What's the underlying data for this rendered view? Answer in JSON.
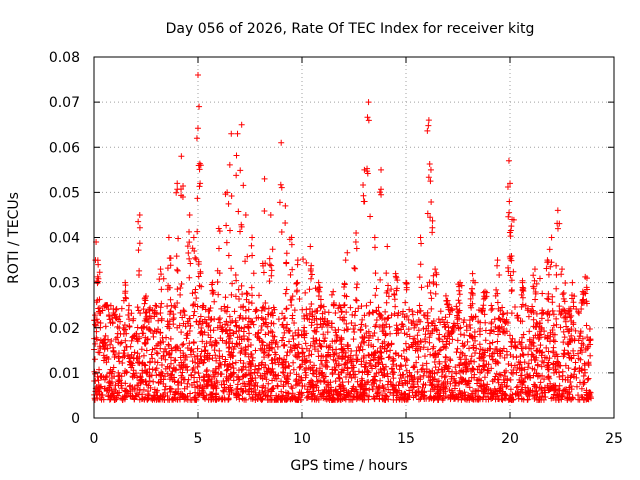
{
  "chart_data": {
    "type": "scatter",
    "title": "Day 056 of 2026, Rate Of TEC Index for receiver kitg",
    "xlabel": "GPS time / hours",
    "ylabel": "ROTI / TECUs",
    "xlim": [
      0,
      25
    ],
    "ylim": [
      0,
      0.08
    ],
    "xticks": [
      0,
      5,
      10,
      15,
      20,
      25
    ],
    "xtick_labels": [
      "0",
      "5",
      "10",
      "15",
      "20",
      "25"
    ],
    "yticks": [
      0,
      0.01,
      0.02,
      0.03,
      0.04,
      0.05,
      0.06,
      0.07,
      0.08
    ],
    "ytick_labels": [
      "0",
      "0.01",
      "0.02",
      "0.03",
      "0.04",
      "0.05",
      "0.06",
      "0.07",
      "0.08"
    ],
    "grid": true,
    "marker": "+",
    "series": [
      {
        "name": "ROTI",
        "color": "#ff0000",
        "x_range_hours": [
          0,
          23.9
        ],
        "typical_band": [
          0.004,
          0.025
        ],
        "peaks": [
          {
            "x": 0.1,
            "y": 0.039
          },
          {
            "x": 0.2,
            "y": 0.034
          },
          {
            "x": 0.6,
            "y": 0.025
          },
          {
            "x": 0.9,
            "y": 0.021
          },
          {
            "x": 1.5,
            "y": 0.03
          },
          {
            "x": 2.2,
            "y": 0.045
          },
          {
            "x": 2.5,
            "y": 0.027
          },
          {
            "x": 3.2,
            "y": 0.033
          },
          {
            "x": 3.6,
            "y": 0.04
          },
          {
            "x": 4.0,
            "y": 0.052
          },
          {
            "x": 4.2,
            "y": 0.058
          },
          {
            "x": 4.6,
            "y": 0.045
          },
          {
            "x": 4.8,
            "y": 0.04
          },
          {
            "x": 4.95,
            "y": 0.062
          },
          {
            "x": 5.0,
            "y": 0.076
          },
          {
            "x": 5.05,
            "y": 0.069
          },
          {
            "x": 5.1,
            "y": 0.052
          },
          {
            "x": 5.7,
            "y": 0.03
          },
          {
            "x": 6.0,
            "y": 0.042
          },
          {
            "x": 6.4,
            "y": 0.05
          },
          {
            "x": 6.6,
            "y": 0.063
          },
          {
            "x": 6.9,
            "y": 0.063
          },
          {
            "x": 7.1,
            "y": 0.065
          },
          {
            "x": 7.3,
            "y": 0.045
          },
          {
            "x": 7.6,
            "y": 0.04
          },
          {
            "x": 8.2,
            "y": 0.053
          },
          {
            "x": 8.5,
            "y": 0.045
          },
          {
            "x": 9.0,
            "y": 0.061
          },
          {
            "x": 9.2,
            "y": 0.047
          },
          {
            "x": 9.5,
            "y": 0.04
          },
          {
            "x": 9.8,
            "y": 0.035
          },
          {
            "x": 10.4,
            "y": 0.038
          },
          {
            "x": 10.8,
            "y": 0.03
          },
          {
            "x": 11.5,
            "y": 0.028
          },
          {
            "x": 12.1,
            "y": 0.035
          },
          {
            "x": 12.6,
            "y": 0.041
          },
          {
            "x": 13.0,
            "y": 0.055
          },
          {
            "x": 13.2,
            "y": 0.07
          },
          {
            "x": 13.5,
            "y": 0.04
          },
          {
            "x": 13.8,
            "y": 0.055
          },
          {
            "x": 14.1,
            "y": 0.038
          },
          {
            "x": 14.5,
            "y": 0.032
          },
          {
            "x": 15.0,
            "y": 0.03
          },
          {
            "x": 15.7,
            "y": 0.04
          },
          {
            "x": 16.1,
            "y": 0.066
          },
          {
            "x": 16.2,
            "y": 0.055
          },
          {
            "x": 16.4,
            "y": 0.033
          },
          {
            "x": 17.0,
            "y": 0.026
          },
          {
            "x": 17.6,
            "y": 0.03
          },
          {
            "x": 18.2,
            "y": 0.032
          },
          {
            "x": 18.8,
            "y": 0.028
          },
          {
            "x": 19.4,
            "y": 0.035
          },
          {
            "x": 19.95,
            "y": 0.057
          },
          {
            "x": 20.0,
            "y": 0.052
          },
          {
            "x": 20.1,
            "y": 0.044
          },
          {
            "x": 20.6,
            "y": 0.03
          },
          {
            "x": 21.2,
            "y": 0.033
          },
          {
            "x": 21.8,
            "y": 0.035
          },
          {
            "x": 22.0,
            "y": 0.04
          },
          {
            "x": 22.3,
            "y": 0.046
          },
          {
            "x": 22.5,
            "y": 0.033
          },
          {
            "x": 23.0,
            "y": 0.03
          },
          {
            "x": 23.5,
            "y": 0.028
          },
          {
            "x": 23.7,
            "y": 0.031
          }
        ]
      }
    ]
  }
}
